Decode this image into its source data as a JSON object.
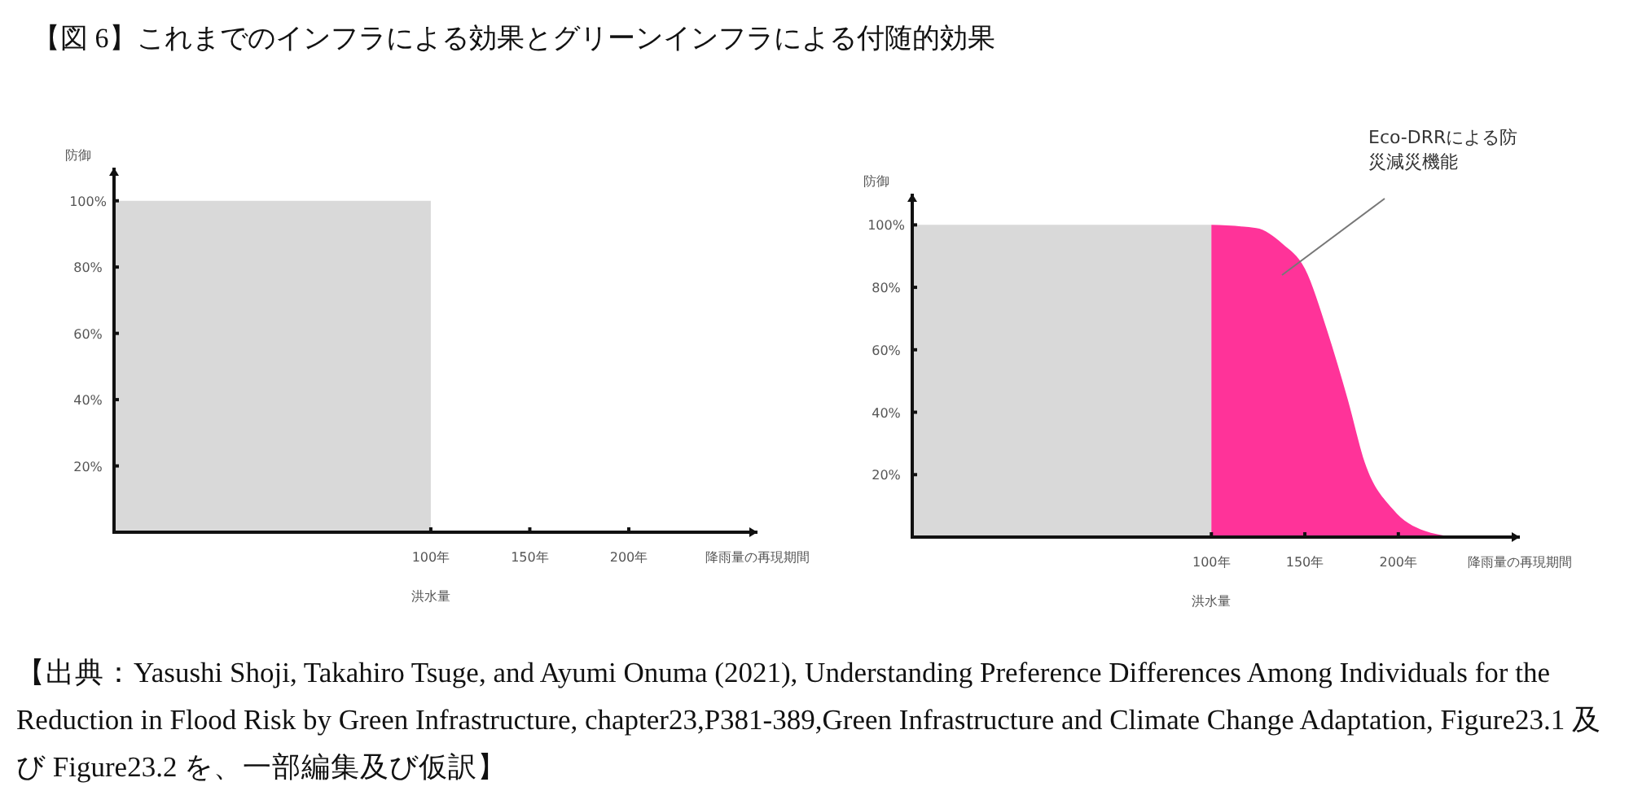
{
  "chart_data": [
    {
      "type": "area",
      "title": "【図 6】これまでのインフラによる効果とグリーンインフラによる付随的効果",
      "ylabel": "防御",
      "xlabel": "降雨量の再現期間",
      "xlim": [
        -60,
        265
      ],
      "ylim": [
        0,
        110
      ],
      "xticks": [
        {
          "value": 100,
          "label": "100年"
        },
        {
          "value": 150,
          "label": "150年"
        },
        {
          "value": 200,
          "label": "200年"
        }
      ],
      "yticks": [
        {
          "value": 20,
          "label": "20%"
        },
        {
          "value": 40,
          "label": "40%"
        },
        {
          "value": 60,
          "label": "60%"
        },
        {
          "value": 80,
          "label": "80%"
        },
        {
          "value": 100,
          "label": "100%"
        }
      ],
      "series": [
        {
          "color": "#d9d9d9",
          "x": [
            -60,
            100
          ],
          "values": [
            100,
            100
          ]
        }
      ],
      "annotations": [
        "洪水量",
        "【出典：Yasushi Shoji, Takahiro Tsuge, and Ayumi Onuma (2021), Understanding Preference Differences Among Individuals for the Reduction in Flood Risk by Green Infrastructure, chapter23,P381-389,Green Infrastructure and Climate Change Adaptation, Figure23.1 及び Figure23.2 を、一部編集及び仮訳】"
      ],
      "grid": false
    },
    {
      "type": "area",
      "ylabel": "防御",
      "xlabel": "降雨量の再現期間",
      "xlim": [
        -60,
        265
      ],
      "ylim": [
        0,
        110
      ],
      "xticks": [
        {
          "value": 100,
          "label": "100年"
        },
        {
          "value": 150,
          "label": "150年"
        },
        {
          "value": 200,
          "label": "200年"
        }
      ],
      "yticks": [
        {
          "value": 20,
          "label": "20%"
        },
        {
          "value": 40,
          "label": "40%"
        },
        {
          "value": 60,
          "label": "60%"
        },
        {
          "value": 80,
          "label": "80%"
        },
        {
          "value": 100,
          "label": "100%"
        }
      ],
      "series": [
        {
          "color": "#d9d9d9",
          "x": [
            -60,
            100
          ],
          "values": [
            100,
            100
          ]
        },
        {
          "color": "#ff3399",
          "x": [
            100,
            124,
            138,
            150,
            162,
            173,
            182,
            197,
            214,
            232
          ],
          "values": [
            100,
            99,
            94,
            86,
            66,
            44,
            24,
            9,
            2,
            0
          ]
        }
      ],
      "annotations": [
        "Eco-DRRによる防災減災機能",
        "洪水量"
      ],
      "grid": false
    }
  ]
}
